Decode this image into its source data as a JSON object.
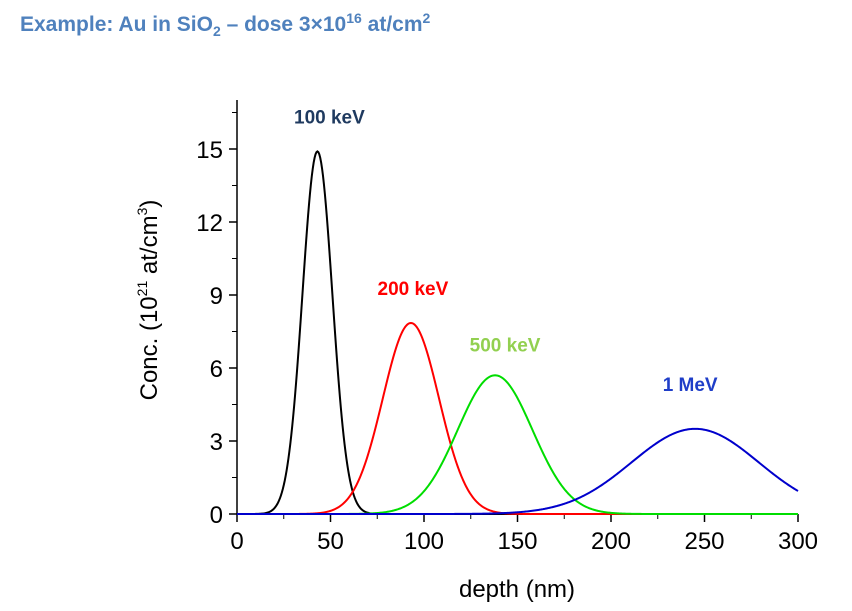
{
  "header": {
    "title_main": "Example: Au in SiO",
    "title_sub": "2",
    "title_dose": " – dose 3×10",
    "title_exp": "16",
    "title_unit": " at/cm",
    "title_unit_exp": "2"
  },
  "chart_data": {
    "type": "line",
    "xlabel": "depth (nm)",
    "ylabel_pre": "Conc. (10",
    "ylabel_exp": "21",
    "ylabel_mid": " at/cm",
    "ylabel_exp2": "3",
    "ylabel_post": ")",
    "xlim": [
      0,
      300
    ],
    "ylim": [
      0,
      17
    ],
    "xticks": [
      0,
      50,
      100,
      150,
      200,
      250,
      300
    ],
    "yticks": [
      0,
      3,
      6,
      9,
      12,
      15
    ],
    "grid": false,
    "series": [
      {
        "name": "100 keV",
        "color": "#000000",
        "peak_depth": 43,
        "peak_conc": 14.9,
        "sigma": 8,
        "x": [
          15,
          25,
          35,
          43,
          50,
          60,
          70
        ],
        "y": [
          0.03,
          0.6,
          8.6,
          14.9,
          10.5,
          1.6,
          0.06
        ]
      },
      {
        "name": "200 keV",
        "color": "#ff0000",
        "peak_depth": 93,
        "peak_conc": 7.85,
        "sigma": 15,
        "x": [
          50,
          70,
          80,
          93,
          110,
          130,
          150
        ],
        "y": [
          0.11,
          2.4,
          5.3,
          7.85,
          4.0,
          0.3,
          0.06
        ]
      },
      {
        "name": "500 keV",
        "color": "#00dd00",
        "peak_depth": 138,
        "peak_conc": 5.7,
        "sigma": 20,
        "x": [
          80,
          110,
          125,
          138,
          155,
          180,
          210
        ],
        "y": [
          0.09,
          2.1,
          4.6,
          5.7,
          3.9,
          0.63,
          0.01
        ]
      },
      {
        "name": "1 MeV",
        "color": "#0000cc",
        "peak_depth": 245,
        "peak_conc": 3.5,
        "sigma": 34,
        "x": [
          150,
          185,
          220,
          245,
          270,
          300
        ],
        "y": [
          0.14,
          0.73,
          2.6,
          3.5,
          2.6,
          0.96
        ]
      }
    ],
    "label_colors": {
      "100 keV": "#1f3a5f",
      "200 keV": "#ff0000",
      "500 keV": "#92d050",
      "1 MeV": "#1f3ec8"
    }
  }
}
